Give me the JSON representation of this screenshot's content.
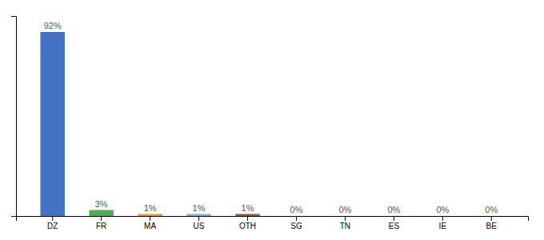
{
  "chart_data": {
    "type": "bar",
    "categories": [
      "DZ",
      "FR",
      "MA",
      "US",
      "OTH",
      "SG",
      "TN",
      "ES",
      "IE",
      "BE"
    ],
    "values": [
      92,
      3,
      1,
      1,
      1,
      0,
      0,
      0,
      0,
      0
    ],
    "value_labels": [
      "92%",
      "3%",
      "1%",
      "1%",
      "1%",
      "0%",
      "0%",
      "0%",
      "0%",
      "0%"
    ],
    "colors": [
      "#4472c4",
      "#4caf50",
      "#ff9800",
      "#64b5f6",
      "#a0522d",
      "#4472c4",
      "#4472c4",
      "#4472c4",
      "#4472c4",
      "#4472c4"
    ],
    "ylim": [
      0,
      100
    ],
    "data_labels": true,
    "tick_labels": "x",
    "grid": false
  }
}
